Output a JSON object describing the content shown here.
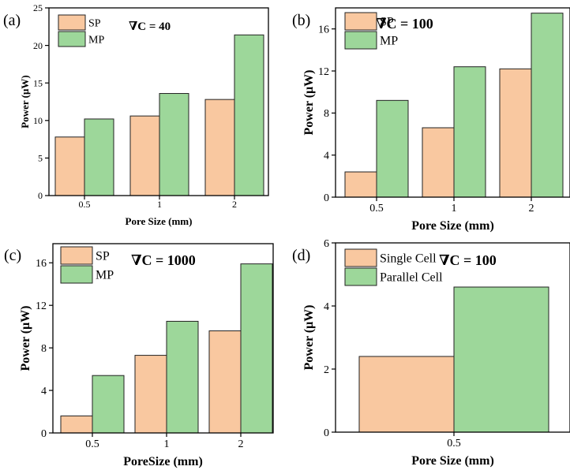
{
  "colors": {
    "SP": "#f9c8a0",
    "MP": "#9dd79a",
    "Single Cell": "#f9c8a0",
    "Parallel Cell": "#9dd79a"
  },
  "chart_data": [
    {
      "type": "bar",
      "panel": "(a)",
      "title": "∇C = 40",
      "categories": [
        "0.5",
        "1",
        "2"
      ],
      "series": [
        {
          "name": "SP",
          "values": [
            7.8,
            10.6,
            12.8
          ]
        },
        {
          "name": "MP",
          "values": [
            10.2,
            13.6,
            21.4
          ]
        }
      ],
      "xlabel": "Pore Size (mm)",
      "ylabel": "Power (μW)",
      "ylim": [
        0,
        25
      ],
      "yticks": [
        "0",
        "5",
        "10",
        "15",
        "20",
        "25"
      ],
      "legend": "top-left"
    },
    {
      "type": "bar",
      "panel": "(b)",
      "title": "∇C = 100",
      "categories": [
        "0.5",
        "1",
        "2"
      ],
      "series": [
        {
          "name": "SP",
          "values": [
            2.4,
            6.6,
            12.2
          ]
        },
        {
          "name": "MP",
          "values": [
            9.2,
            12.4,
            17.5
          ]
        }
      ],
      "xlabel": "Pore Size (mm)",
      "ylabel": "Power (μW)",
      "ylim": [
        0,
        18
      ],
      "yticks": [
        "0",
        "4",
        "8",
        "12",
        "16"
      ],
      "legend": "top-left"
    },
    {
      "type": "bar",
      "panel": "(c)",
      "title": "∇C = 1000",
      "categories": [
        "0.5",
        "1",
        "2"
      ],
      "series": [
        {
          "name": "SP",
          "values": [
            1.6,
            7.3,
            9.6
          ]
        },
        {
          "name": "MP",
          "values": [
            5.4,
            10.5,
            15.9
          ]
        }
      ],
      "xlabel": "PoreSize (mm)",
      "ylabel": "Power (μW)",
      "ylim": [
        0,
        17.8
      ],
      "yticks": [
        "0",
        "4",
        "8",
        "12",
        "16"
      ],
      "legend": "top-left"
    },
    {
      "type": "bar",
      "panel": "(d)",
      "title": "∇C = 100",
      "categories": [
        "0.5"
      ],
      "series": [
        {
          "name": "Single Cell",
          "values": [
            2.4
          ]
        },
        {
          "name": "Parallel Cell",
          "values": [
            4.6
          ]
        }
      ],
      "xlabel": "Pore Size (mm)",
      "ylabel": "Power (μW)",
      "ylim": [
        0,
        6
      ],
      "yticks": [
        "0",
        "2",
        "4",
        "6"
      ],
      "legend": "top-left"
    }
  ]
}
